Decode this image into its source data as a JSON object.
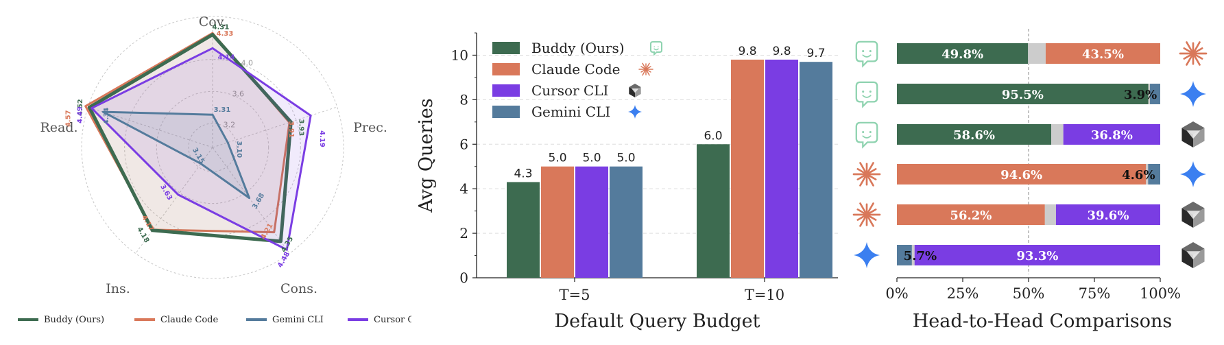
{
  "colors": {
    "buddy": "#3d6b50",
    "claude": "#d9785a",
    "cursor": "#7a3de3",
    "gemini": "#547b9c",
    "tie": "#cccccc",
    "grid": "#c8c8c8"
  },
  "chart_data": [
    {
      "type": "radar",
      "axes": [
        "Cov.",
        "Prec.",
        "Cons.",
        "Ins.",
        "Read."
      ],
      "rmin": 2.9,
      "rmax": 4.4,
      "grid_rings": [
        3.2,
        3.6,
        4.0
      ],
      "grid_ring_labels": [
        "3.2",
        "3.6",
        "4.0"
      ],
      "grid": true,
      "legend_position": "bottom",
      "series": [
        {
          "name": "Buddy (Ours)",
          "key": "buddy",
          "values": [
            4.31,
            3.93,
            4.35,
            4.18,
            4.52
          ],
          "labels": [
            "4.31",
            "3.93",
            "4.35",
            "4.18",
            "4.52"
          ]
        },
        {
          "name": "Claude Code",
          "key": "claude",
          "values": [
            4.33,
            3.91,
            4.21,
            4.17,
            4.57
          ],
          "labels": [
            "4.33",
            "3.91",
            "4.21",
            "4.17",
            "4.57"
          ]
        },
        {
          "name": "Gemini CLI",
          "key": "gemini",
          "values": [
            3.31,
            3.1,
            3.68,
            3.15,
            4.34
          ],
          "labels": [
            "3.31",
            "3.10",
            "3.68",
            "3.15",
            "4.34"
          ]
        },
        {
          "name": "Cursor CLI",
          "key": "cursor",
          "values": [
            4.14,
            4.19,
            4.48,
            3.63,
            4.49
          ],
          "labels": [
            "4.14",
            "4.19",
            "4.48",
            "3.63",
            "4.49"
          ]
        }
      ]
    },
    {
      "type": "bar",
      "categories": [
        "T=5",
        "T=10"
      ],
      "xlabel": "Default Query Budget",
      "ylabel": "Avg Queries",
      "ylim": [
        0,
        11
      ],
      "yticks": [
        0,
        2,
        4,
        6,
        8,
        10
      ],
      "ytick_labels": [
        "0",
        "2",
        "4",
        "6",
        "8",
        "10"
      ],
      "grid": true,
      "legend_position": "top-left",
      "series": [
        {
          "name": "Buddy (Ours)",
          "key": "buddy",
          "values": [
            4.3,
            6.0
          ],
          "labels": [
            "4.3",
            "6.0"
          ]
        },
        {
          "name": "Claude Code",
          "key": "claude",
          "values": [
            5.0,
            9.8
          ],
          "labels": [
            "5.0",
            "9.8"
          ]
        },
        {
          "name": "Cursor CLI",
          "key": "cursor",
          "values": [
            5.0,
            9.8
          ],
          "labels": [
            "5.0",
            "9.8"
          ]
        },
        {
          "name": "Gemini CLI",
          "key": "gemini",
          "values": [
            5.0,
            9.7
          ],
          "labels": [
            "5.0",
            "9.7"
          ]
        }
      ]
    },
    {
      "type": "stacked-bar",
      "xlabel": "Head-to-Head Comparisons",
      "xticks": [
        0,
        25,
        50,
        75,
        100
      ],
      "xtick_labels": [
        "0%",
        "25%",
        "50%",
        "75%",
        "100%"
      ],
      "rows": [
        {
          "left": "buddy",
          "right": "claude",
          "left_value": 49.8,
          "right_value": 43.5,
          "left_label": "49.8%",
          "right_label": "43.5%"
        },
        {
          "left": "buddy",
          "right": "gemini",
          "left_value": 95.5,
          "right_value": 3.9,
          "left_label": "95.5%",
          "right_label": "3.9%"
        },
        {
          "left": "buddy",
          "right": "cursor",
          "left_value": 58.6,
          "right_value": 36.8,
          "left_label": "58.6%",
          "right_label": "36.8%"
        },
        {
          "left": "claude",
          "right": "gemini",
          "left_value": 94.6,
          "right_value": 4.6,
          "left_label": "94.6%",
          "right_label": "4.6%"
        },
        {
          "left": "claude",
          "right": "cursor",
          "left_value": 56.2,
          "right_value": 39.6,
          "left_label": "56.2%",
          "right_label": "39.6%"
        },
        {
          "left": "gemini",
          "right": "cursor",
          "left_value": 5.7,
          "right_value": 93.3,
          "left_label": "5.7%",
          "right_label": "93.3%"
        }
      ]
    }
  ],
  "icons": {
    "buddy": "buddy-smile-icon",
    "claude": "claude-asterisk-icon",
    "cursor": "cursor-cube-icon",
    "gemini": "gemini-star-icon"
  }
}
